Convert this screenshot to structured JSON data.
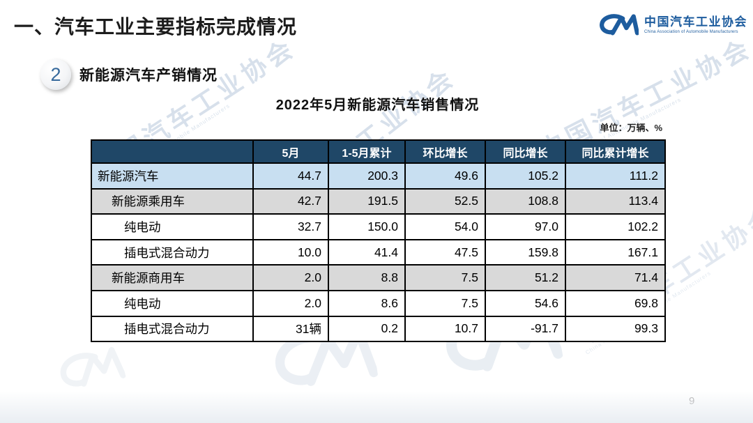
{
  "slide": {
    "title": "一、汽车工业主要指标完成情况",
    "section_number": "2",
    "section_title": "新能源汽车产销情况",
    "table_title": "2022年5月新能源汽车销售情况",
    "unit_note": "单位：万辆、%",
    "page_number": "9"
  },
  "logo": {
    "mark": "CM",
    "name_cn": "中国汽车工业协会",
    "name_en": "China Association of Automobile Manufacturers",
    "color": "#1d5c9e"
  },
  "watermark": {
    "text_cn": "中国汽车工业协会",
    "text_en": "China Association of Automobile Manufacturers"
  },
  "chart_data": {
    "type": "table",
    "title": "2022年5月新能源汽车销售情况",
    "unit": "单位：万辆、%",
    "columns": [
      "",
      "5月",
      "1-5月累计",
      "环比增长",
      "同比增长",
      "同比累计增长"
    ],
    "rows": [
      {
        "label": "新能源汽车",
        "indent": 0,
        "style": "blue",
        "values": [
          "44.7",
          "200.3",
          "49.6",
          "105.2",
          "111.2"
        ]
      },
      {
        "label": "新能源乘用车",
        "indent": 1,
        "style": "gray",
        "values": [
          "42.7",
          "191.5",
          "52.5",
          "108.8",
          "113.4"
        ]
      },
      {
        "label": "纯电动",
        "indent": 2,
        "style": "white",
        "values": [
          "32.7",
          "150.0",
          "54.0",
          "97.0",
          "102.2"
        ]
      },
      {
        "label": "插电式混合动力",
        "indent": 2,
        "style": "white",
        "values": [
          "10.0",
          "41.4",
          "47.5",
          "159.8",
          "167.1"
        ]
      },
      {
        "label": "新能源商用车",
        "indent": 1,
        "style": "gray",
        "values": [
          "2.0",
          "8.8",
          "7.5",
          "51.2",
          "71.4"
        ]
      },
      {
        "label": "纯电动",
        "indent": 2,
        "style": "white",
        "values": [
          "2.0",
          "8.6",
          "7.5",
          "54.6",
          "69.8"
        ]
      },
      {
        "label": "插电式混合动力",
        "indent": 2,
        "style": "white",
        "values": [
          "31辆",
          "0.2",
          "10.7",
          "-91.7",
          "99.3"
        ]
      }
    ],
    "colors": {
      "header_bg": "#1F4767",
      "header_text": "#FFFFFF",
      "row_blue": "#C8DFF1",
      "row_gray": "#D9D9D9",
      "row_white": "#FFFFFF",
      "border": "#000000"
    }
  }
}
